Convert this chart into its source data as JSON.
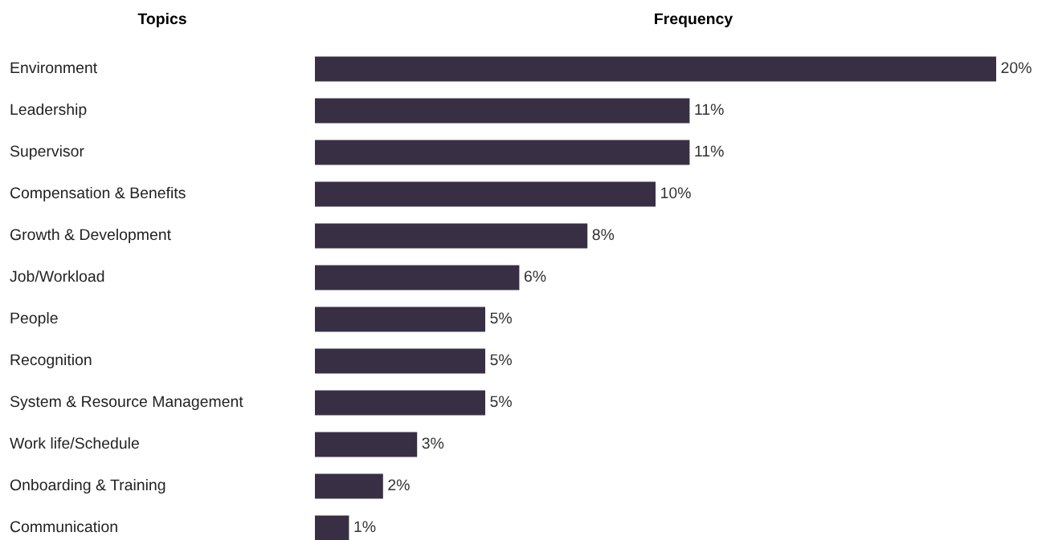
{
  "chart_data": {
    "type": "bar",
    "orientation": "horizontal",
    "title": "Frequency",
    "ylabel": "Topics",
    "categories": [
      "Environment",
      "Leadership",
      "Supervisor",
      "Compensation & Benefits",
      "Growth & Development",
      "Job/Workload",
      "People",
      "Recognition",
      "System & Resource Management",
      "Work life/Schedule",
      "Onboarding & Training",
      "Communication"
    ],
    "values": [
      20,
      11,
      11,
      10,
      8,
      6,
      5,
      5,
      5,
      3,
      2,
      1
    ],
    "value_labels": [
      "20%",
      "11%",
      "11%",
      "10%",
      "8%",
      "6%",
      "5%",
      "5%",
      "5%",
      "3%",
      "2%",
      "1%"
    ],
    "color": "#392f45"
  }
}
